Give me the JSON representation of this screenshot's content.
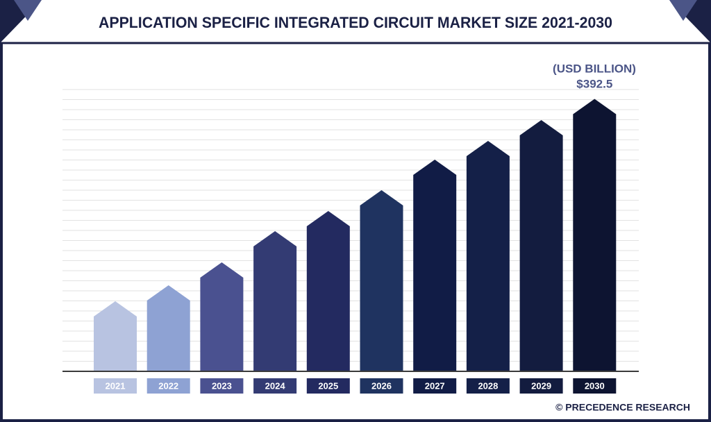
{
  "chart_data": {
    "type": "bar",
    "title": "APPLICATION SPECIFIC INTEGRATED CIRCUIT MARKET SIZE 2021-2030",
    "subtitle": "(USD BILLION)",
    "categories": [
      "2021",
      "2022",
      "2023",
      "2024",
      "2025",
      "2026",
      "2027",
      "2028",
      "2029",
      "2030"
    ],
    "values": [
      101,
      124,
      157,
      202,
      231,
      261,
      305,
      332,
      362,
      392.5
    ],
    "value_labels": [
      null,
      null,
      null,
      null,
      null,
      null,
      null,
      null,
      null,
      "$392.5"
    ],
    "colors": [
      "#b8c3e1",
      "#8ea2d3",
      "#4a5190",
      "#333b73",
      "#232a60",
      "#1f3360",
      "#111c46",
      "#142048",
      "#131c3f",
      "#0d1431"
    ],
    "grid": true,
    "source": "© PRECEDENCE RESEARCH"
  }
}
